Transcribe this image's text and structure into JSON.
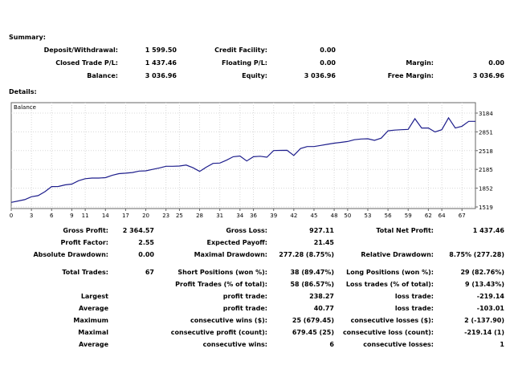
{
  "summary": {
    "title": "Summary:",
    "rows": [
      [
        {
          "label": "Deposit/Withdrawal:",
          "value": "1 599.50"
        },
        {
          "label": "Credit Facility:",
          "value": "0.00"
        },
        {
          "label": "",
          "value": ""
        }
      ],
      [
        {
          "label": "Closed Trade P/L:",
          "value": "1 437.46"
        },
        {
          "label": "Floating P/L:",
          "value": "0.00"
        },
        {
          "label": "Margin:",
          "value": "0.00"
        }
      ],
      [
        {
          "label": "Balance:",
          "value": "3 036.96"
        },
        {
          "label": "Equity:",
          "value": "3 036.96"
        },
        {
          "label": "Free Margin:",
          "value": "3 036.96"
        }
      ]
    ]
  },
  "details": {
    "title": "Details:"
  },
  "chart_data": {
    "type": "line",
    "title": "",
    "legend_label": "Balance",
    "xlabel": "",
    "ylabel": "",
    "ylim": [
      1519,
      3184
    ],
    "xlim": [
      0,
      69
    ],
    "y_ticks": [
      "3184",
      "2851",
      "2518",
      "2185",
      "1852",
      "1519"
    ],
    "x_ticks": [
      "0",
      "3",
      "6",
      "9",
      "11",
      "14",
      "17",
      "20",
      "23",
      "25",
      "28",
      "31",
      "34",
      "36",
      "39",
      "42",
      "45",
      "48",
      "50",
      "53",
      "56",
      "59",
      "62",
      "64",
      "67"
    ],
    "grid": true,
    "line_color": "#1e1e8c",
    "series": [
      {
        "x": [
          0,
          1,
          2,
          3,
          4,
          5,
          6,
          7,
          8,
          9,
          10,
          11,
          12,
          13,
          14,
          15,
          16,
          17,
          18,
          19,
          20,
          21,
          22,
          23,
          24,
          25,
          26,
          27,
          28,
          29,
          30,
          31,
          32,
          33,
          34,
          35,
          36,
          37,
          38,
          39,
          40,
          41,
          42,
          43,
          44,
          45,
          46,
          47,
          48,
          49,
          50,
          51,
          52,
          53,
          54,
          55,
          56,
          57,
          58,
          59,
          60,
          61,
          62,
          63,
          64,
          65,
          66,
          67,
          68,
          69
        ],
        "y": [
          1599.5,
          1625,
          1648,
          1700,
          1720,
          1790,
          1880,
          1882,
          1910,
          1925,
          1985,
          2020,
          2032,
          2032,
          2038,
          2080,
          2110,
          2118,
          2130,
          2155,
          2160,
          2185,
          2210,
          2240,
          2240,
          2245,
          2262,
          2215,
          2150,
          2225,
          2292,
          2298,
          2348,
          2410,
          2423,
          2335,
          2410,
          2418,
          2402,
          2520,
          2522,
          2524,
          2433,
          2555,
          2590,
          2590,
          2610,
          2630,
          2650,
          2665,
          2680,
          2712,
          2725,
          2728,
          2700,
          2740,
          2870,
          2882,
          2890,
          2895,
          3084,
          2920,
          2920,
          2850,
          2890,
          3100,
          2920,
          2950,
          3036.96,
          3036.96
        ]
      }
    ]
  },
  "stats": {
    "left": [
      {
        "label": "Gross Profit:",
        "value": "2 364.57"
      },
      {
        "label": "Profit Factor:",
        "value": "2.55"
      },
      {
        "label": "Absolute Drawdown:",
        "value": "0.00"
      },
      {
        "label": "Total Trades:",
        "value": "67"
      },
      {
        "label": "",
        "value": ""
      },
      {
        "label": "Largest",
        "value": ""
      },
      {
        "label": "Average",
        "value": ""
      },
      {
        "label": "Maximum",
        "value": ""
      },
      {
        "label": "Maximal",
        "value": ""
      },
      {
        "label": "Average",
        "value": ""
      }
    ],
    "mid": [
      {
        "label": "Gross Loss:",
        "value": "927.11"
      },
      {
        "label": "Expected Payoff:",
        "value": "21.45"
      },
      {
        "label": "Maximal Drawdown:",
        "value": "277.28 (8.75%)"
      },
      {
        "label": "Short Positions (won %):",
        "value": "38 (89.47%)"
      },
      {
        "label": "Profit Trades (% of total):",
        "value": "58 (86.57%)"
      },
      {
        "label": "profit trade:",
        "value": "238.27"
      },
      {
        "label": "profit trade:",
        "value": "40.77"
      },
      {
        "label": "consecutive wins ($):",
        "value": "25 (679.45)"
      },
      {
        "label": "consecutive profit (count):",
        "value": "679.45 (25)"
      },
      {
        "label": "consecutive wins:",
        "value": "6"
      }
    ],
    "right": [
      {
        "label": "Total Net Profit:",
        "value": "1 437.46"
      },
      {
        "label": "",
        "value": ""
      },
      {
        "label": "Relative Drawdown:",
        "value": "8.75% (277.28)"
      },
      {
        "label": "Long Positions (won %):",
        "value": "29 (82.76%)"
      },
      {
        "label": "Loss trades (% of total):",
        "value": "9 (13.43%)"
      },
      {
        "label": "loss trade:",
        "value": "-219.14"
      },
      {
        "label": "loss trade:",
        "value": "-103.01"
      },
      {
        "label": "consecutive losses ($):",
        "value": "2 (-137.90)"
      },
      {
        "label": "consecutive loss (count):",
        "value": "-219.14 (1)"
      },
      {
        "label": "consecutive losses:",
        "value": "1"
      }
    ]
  }
}
